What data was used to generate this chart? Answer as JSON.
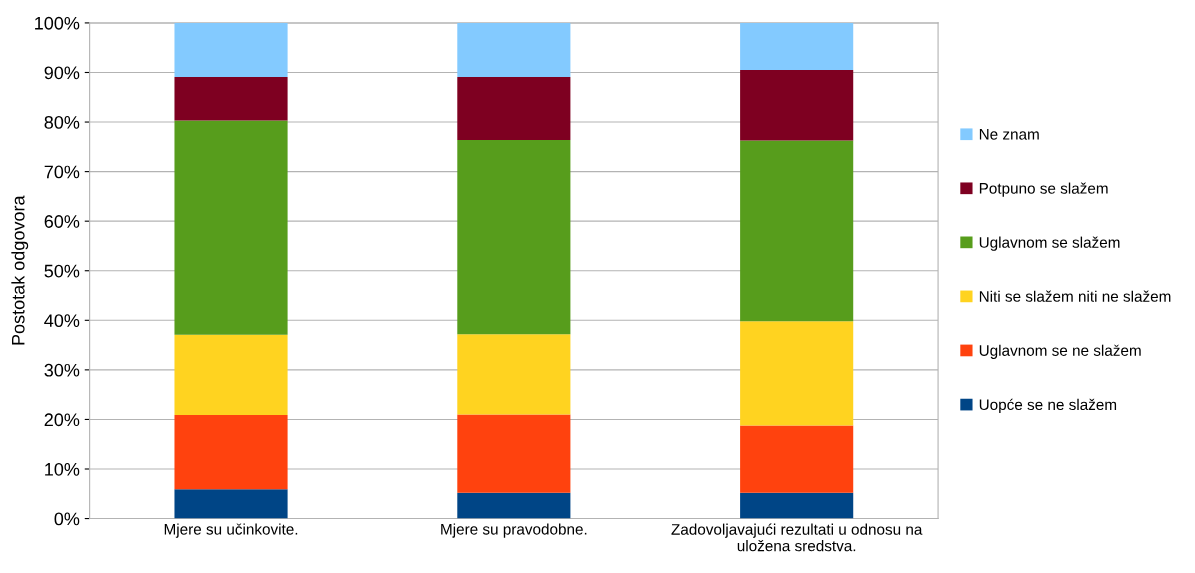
{
  "chart_data": {
    "type": "bar",
    "stacked": true,
    "ylabel": "Postotak odgovora",
    "categories": [
      "Mjere su učinkovite.",
      "Mjere su pravodobne.",
      "Zadovoljavajući rezultati u odnosu na uložena sredstva."
    ],
    "series": [
      {
        "name": "Uopće se ne slažem",
        "color": "#004586",
        "values": [
          5.9,
          5.2,
          5.2
        ]
      },
      {
        "name": "Uglavnom se ne slažem",
        "color": "#ff420e",
        "values": [
          15.0,
          15.8,
          13.6
        ]
      },
      {
        "name": "Niti se slažem niti ne slažem",
        "color": "#ffd320",
        "values": [
          16.2,
          16.2,
          21.0
        ]
      },
      {
        "name": "Uglavnom se slažem",
        "color": "#579d1c",
        "values": [
          43.2,
          39.2,
          36.5
        ]
      },
      {
        "name": "Potpuno se slažem",
        "color": "#7e0021",
        "values": [
          8.8,
          12.7,
          14.2
        ]
      },
      {
        "name": "Ne znam",
        "color": "#83caff",
        "values": [
          10.9,
          10.9,
          9.5
        ]
      }
    ],
    "ylim": [
      0,
      100
    ],
    "yticks": [
      {
        "value": 0,
        "label": "0%"
      },
      {
        "value": 10,
        "label": "10%"
      },
      {
        "value": 20,
        "label": "20%"
      },
      {
        "value": 30,
        "label": "30%"
      },
      {
        "value": 40,
        "label": "40%"
      },
      {
        "value": 50,
        "label": "50%"
      },
      {
        "value": 60,
        "label": "60%"
      },
      {
        "value": 70,
        "label": "70%"
      },
      {
        "value": 80,
        "label": "80%"
      },
      {
        "value": 90,
        "label": "90%"
      },
      {
        "value": 100,
        "label": "100%"
      }
    ],
    "grid": "y",
    "legend": "right"
  }
}
